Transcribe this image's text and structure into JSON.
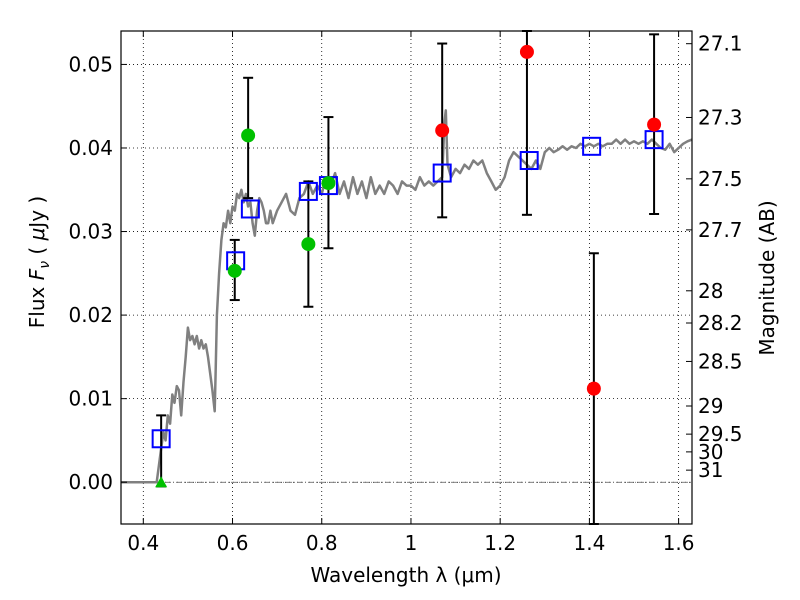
{
  "chart_data": {
    "type": "scatter",
    "xlabel": "Wavelength  λ (μm)",
    "ylabel_parts": [
      "Flux  ",
      "F",
      "ν",
      "  ( ",
      "μ",
      "Jy )"
    ],
    "y2label": "Magnitude (AB)",
    "xlim": [
      0.35,
      1.63
    ],
    "ylim": [
      -0.005,
      0.054
    ],
    "grid": true,
    "x_ticks": [
      {
        "value": 0.4,
        "label": "0.4"
      },
      {
        "value": 0.6,
        "label": "0.6"
      },
      {
        "value": 0.8,
        "label": "0.8"
      },
      {
        "value": 1.0,
        "label": "1"
      },
      {
        "value": 1.2,
        "label": "1.2"
      },
      {
        "value": 1.4,
        "label": "1.4"
      },
      {
        "value": 1.6,
        "label": "1.6"
      }
    ],
    "y_ticks": [
      {
        "value": 0.0,
        "label": "0.00"
      },
      {
        "value": 0.01,
        "label": "0.01"
      },
      {
        "value": 0.02,
        "label": "0.02"
      },
      {
        "value": 0.03,
        "label": "0.03"
      },
      {
        "value": 0.04,
        "label": "0.04"
      },
      {
        "value": 0.05,
        "label": "0.05"
      }
    ],
    "mag_ticks": [
      {
        "value": 27.1,
        "label": "27.1"
      },
      {
        "value": 27.3,
        "label": "27.3"
      },
      {
        "value": 27.5,
        "label": "27.5"
      },
      {
        "value": 27.7,
        "label": "27.7"
      },
      {
        "value": 28.0,
        "label": "28"
      },
      {
        "value": 28.2,
        "label": "28.2"
      },
      {
        "value": 28.5,
        "label": "28.5"
      },
      {
        "value": 29.0,
        "label": "29"
      },
      {
        "value": 29.5,
        "label": "29.5"
      },
      {
        "value": 30.0,
        "label": "30"
      },
      {
        "value": 31.0,
        "label": "31"
      }
    ],
    "series": [
      {
        "kind": "line",
        "color": "#808080",
        "points": [
          [
            0.35,
            0.0
          ],
          [
            0.43,
            0.0
          ],
          [
            0.435,
            0.002
          ],
          [
            0.44,
            0.004
          ],
          [
            0.445,
            0.006
          ],
          [
            0.45,
            0.005
          ],
          [
            0.455,
            0.008
          ],
          [
            0.46,
            0.007
          ],
          [
            0.465,
            0.0105
          ],
          [
            0.47,
            0.0095
          ],
          [
            0.475,
            0.0115
          ],
          [
            0.48,
            0.011
          ],
          [
            0.485,
            0.008
          ],
          [
            0.49,
            0.012
          ],
          [
            0.495,
            0.015
          ],
          [
            0.5,
            0.0185
          ],
          [
            0.505,
            0.017
          ],
          [
            0.51,
            0.0175
          ],
          [
            0.515,
            0.0165
          ],
          [
            0.52,
            0.0175
          ],
          [
            0.525,
            0.016
          ],
          [
            0.53,
            0.017
          ],
          [
            0.535,
            0.016
          ],
          [
            0.54,
            0.0165
          ],
          [
            0.545,
            0.015
          ],
          [
            0.55,
            0.013
          ],
          [
            0.555,
            0.011
          ],
          [
            0.56,
            0.0085
          ],
          [
            0.562,
            0.013
          ],
          [
            0.565,
            0.02
          ],
          [
            0.57,
            0.025
          ],
          [
            0.575,
            0.029
          ],
          [
            0.58,
            0.031
          ],
          [
            0.585,
            0.0305
          ],
          [
            0.59,
            0.0325
          ],
          [
            0.595,
            0.031
          ],
          [
            0.6,
            0.033
          ],
          [
            0.605,
            0.0325
          ],
          [
            0.61,
            0.0345
          ],
          [
            0.615,
            0.034
          ],
          [
            0.62,
            0.035
          ],
          [
            0.625,
            0.0335
          ],
          [
            0.63,
            0.0345
          ],
          [
            0.635,
            0.033
          ],
          [
            0.64,
            0.0335
          ],
          [
            0.645,
            0.031
          ],
          [
            0.65,
            0.0295
          ],
          [
            0.655,
            0.0325
          ],
          [
            0.66,
            0.034
          ],
          [
            0.665,
            0.0335
          ],
          [
            0.67,
            0.0325
          ],
          [
            0.675,
            0.031
          ],
          [
            0.68,
            0.031
          ],
          [
            0.685,
            0.0325
          ],
          [
            0.69,
            0.031
          ],
          [
            0.7,
            0.0325
          ],
          [
            0.71,
            0.0335
          ],
          [
            0.72,
            0.0345
          ],
          [
            0.73,
            0.0325
          ],
          [
            0.74,
            0.032
          ],
          [
            0.75,
            0.034
          ],
          [
            0.76,
            0.0345
          ],
          [
            0.77,
            0.036
          ],
          [
            0.78,
            0.0345
          ],
          [
            0.79,
            0.0355
          ],
          [
            0.8,
            0.0345
          ],
          [
            0.81,
            0.0365
          ],
          [
            0.82,
            0.0355
          ],
          [
            0.83,
            0.037
          ],
          [
            0.84,
            0.0345
          ],
          [
            0.85,
            0.036
          ],
          [
            0.86,
            0.034
          ],
          [
            0.87,
            0.0365
          ],
          [
            0.88,
            0.0345
          ],
          [
            0.89,
            0.036
          ],
          [
            0.9,
            0.034
          ],
          [
            0.91,
            0.0365
          ],
          [
            0.92,
            0.0345
          ],
          [
            0.93,
            0.0355
          ],
          [
            0.94,
            0.0345
          ],
          [
            0.95,
            0.036
          ],
          [
            0.96,
            0.0355
          ],
          [
            0.97,
            0.0345
          ],
          [
            0.98,
            0.036
          ],
          [
            0.99,
            0.0355
          ],
          [
            1.0,
            0.0355
          ],
          [
            1.01,
            0.035
          ],
          [
            1.02,
            0.0365
          ],
          [
            1.03,
            0.0355
          ],
          [
            1.04,
            0.036
          ],
          [
            1.05,
            0.0355
          ],
          [
            1.06,
            0.036
          ],
          [
            1.07,
            0.0365
          ],
          [
            1.075,
            0.043
          ],
          [
            1.078,
            0.0445
          ],
          [
            1.082,
            0.038
          ],
          [
            1.09,
            0.0365
          ],
          [
            1.1,
            0.0375
          ],
          [
            1.11,
            0.037
          ],
          [
            1.12,
            0.038
          ],
          [
            1.13,
            0.0375
          ],
          [
            1.14,
            0.0385
          ],
          [
            1.15,
            0.038
          ],
          [
            1.16,
            0.0385
          ],
          [
            1.17,
            0.037
          ],
          [
            1.18,
            0.036
          ],
          [
            1.19,
            0.035
          ],
          [
            1.2,
            0.0355
          ],
          [
            1.21,
            0.0365
          ],
          [
            1.22,
            0.0385
          ],
          [
            1.23,
            0.0395
          ],
          [
            1.24,
            0.039
          ],
          [
            1.25,
            0.0385
          ],
          [
            1.26,
            0.038
          ],
          [
            1.27,
            0.0375
          ],
          [
            1.28,
            0.0385
          ],
          [
            1.29,
            0.0375
          ],
          [
            1.3,
            0.0395
          ],
          [
            1.31,
            0.04
          ],
          [
            1.32,
            0.0395
          ],
          [
            1.33,
            0.0398
          ],
          [
            1.34,
            0.0402
          ],
          [
            1.35,
            0.0398
          ],
          [
            1.36,
            0.0402
          ],
          [
            1.37,
            0.04
          ],
          [
            1.38,
            0.0405
          ],
          [
            1.39,
            0.0402
          ],
          [
            1.4,
            0.0405
          ],
          [
            1.41,
            0.0402
          ],
          [
            1.42,
            0.0405
          ],
          [
            1.43,
            0.0402
          ],
          [
            1.44,
            0.0405
          ],
          [
            1.45,
            0.0405
          ],
          [
            1.46,
            0.041
          ],
          [
            1.47,
            0.0405
          ],
          [
            1.48,
            0.041
          ],
          [
            1.49,
            0.0405
          ],
          [
            1.5,
            0.0408
          ],
          [
            1.51,
            0.0405
          ],
          [
            1.52,
            0.0408
          ],
          [
            1.53,
            0.0405
          ],
          [
            1.54,
            0.041
          ],
          [
            1.55,
            0.0405
          ],
          [
            1.56,
            0.04
          ],
          [
            1.57,
            0.0398
          ],
          [
            1.58,
            0.0405
          ],
          [
            1.59,
            0.0395
          ],
          [
            1.6,
            0.04
          ],
          [
            1.61,
            0.0405
          ],
          [
            1.62,
            0.0408
          ],
          [
            1.63,
            0.041
          ]
        ]
      },
      {
        "kind": "errorbar",
        "color": "#000000",
        "bars": [
          {
            "x": 0.44,
            "low": -0.0005,
            "high": 0.008
          },
          {
            "x": 0.605,
            "low": 0.0218,
            "high": 0.029
          },
          {
            "x": 0.635,
            "low": 0.034,
            "high": 0.0484
          },
          {
            "x": 0.77,
            "low": 0.021,
            "high": 0.036
          },
          {
            "x": 0.815,
            "low": 0.028,
            "high": 0.0437
          },
          {
            "x": 1.07,
            "low": 0.0317,
            "high": 0.0525
          },
          {
            "x": 1.26,
            "low": 0.032,
            "high": 0.054
          },
          {
            "x": 1.41,
            "low": -0.005,
            "high": 0.0274
          },
          {
            "x": 1.545,
            "low": 0.0321,
            "high": 0.0536
          }
        ]
      },
      {
        "kind": "square",
        "color": "#0000ff",
        "points": [
          [
            0.44,
            0.0052
          ],
          [
            0.607,
            0.0265
          ],
          [
            0.64,
            0.0327
          ],
          [
            0.77,
            0.0348
          ],
          [
            0.815,
            0.0355
          ],
          [
            1.07,
            0.037
          ],
          [
            1.265,
            0.0385
          ],
          [
            1.405,
            0.0402
          ],
          [
            1.545,
            0.041
          ]
        ]
      },
      {
        "kind": "circle",
        "color": "#00c000",
        "points": [
          [
            0.605,
            0.0253
          ],
          [
            0.635,
            0.0415
          ],
          [
            0.77,
            0.0285
          ],
          [
            0.815,
            0.0358
          ]
        ]
      },
      {
        "kind": "circle",
        "color": "#ff0000",
        "points": [
          [
            1.07,
            0.0421
          ],
          [
            1.26,
            0.0515
          ],
          [
            1.41,
            0.0112
          ],
          [
            1.545,
            0.0428
          ]
        ]
      },
      {
        "kind": "triangle",
        "color": "#00c000",
        "points": [
          [
            0.44,
            0.0
          ]
        ]
      }
    ]
  }
}
